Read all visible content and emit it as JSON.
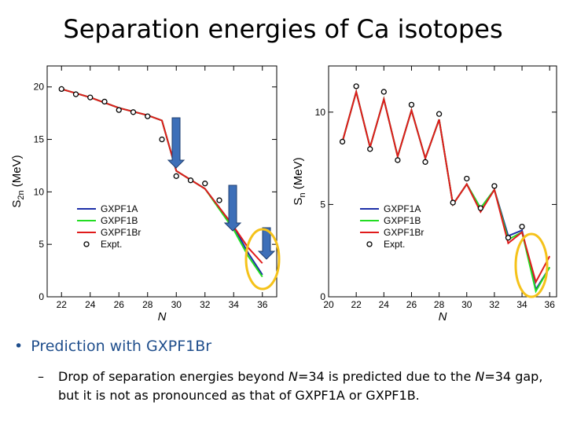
{
  "slide": {
    "title": "Separation energies of Ca isotopes",
    "bullet": "Prediction with GXPF1Br",
    "sub_text_1": "Drop of separation energies beyond ",
    "sub_n1": "N",
    "sub_text_2": "=34 is predicted due to the ",
    "sub_n2": "N",
    "sub_text_3": "=34 gap, but it is not as pronounced as that of GXPF1A or GXPF1B."
  },
  "colors": {
    "GXPF1A": "#1c2fa8",
    "GXPF1B": "#22dd22",
    "GXPF1Br": "#e01b1b",
    "arrow": "#3d6fb8",
    "circle": "#f5c21a"
  },
  "chart_data": [
    {
      "type": "line",
      "ylabel_main": "S",
      "ylabel_sub": "2n",
      "ylabel_unit": " (MeV)",
      "xlabel": "N",
      "xlim": [
        21,
        37
      ],
      "ylim": [
        0,
        22
      ],
      "xticks": [
        22,
        24,
        26,
        28,
        30,
        32,
        34,
        36
      ],
      "yticks": [
        0,
        5,
        10,
        15,
        20
      ],
      "legend": "lower-left",
      "legend_labels": [
        "GXPF1A",
        "GXPF1B",
        "GXPF1Br",
        "Expt."
      ],
      "series": [
        {
          "name": "GXPF1A",
          "x": [
            22,
            24,
            26,
            28,
            29,
            30,
            32,
            34,
            35,
            36
          ],
          "y": [
            19.8,
            19.0,
            18.0,
            17.3,
            16.8,
            12.0,
            10.3,
            6.7,
            4.2,
            2.1
          ]
        },
        {
          "name": "GXPF1B",
          "x": [
            22,
            24,
            26,
            28,
            29,
            30,
            32,
            34,
            35,
            36
          ],
          "y": [
            19.8,
            19.0,
            18.0,
            17.3,
            16.8,
            12.0,
            10.3,
            6.4,
            3.9,
            1.9
          ]
        },
        {
          "name": "GXPF1Br",
          "x": [
            22,
            24,
            26,
            28,
            29,
            30,
            32,
            34,
            35,
            36
          ],
          "y": [
            19.8,
            19.0,
            18.0,
            17.3,
            16.8,
            12.0,
            10.3,
            6.7,
            4.7,
            3.2
          ]
        },
        {
          "name": "Expt.",
          "x": [
            22,
            23,
            24,
            25,
            26,
            27,
            28,
            29,
            30,
            31,
            32,
            33,
            34
          ],
          "y": [
            19.8,
            19.3,
            19.0,
            18.6,
            17.8,
            17.6,
            17.2,
            15.0,
            11.5,
            11.1,
            10.8,
            9.2,
            7.0
          ]
        }
      ]
    },
    {
      "type": "line",
      "ylabel_main": "S",
      "ylabel_sub": "n",
      "ylabel_unit": " (MeV)",
      "xlabel": "N",
      "xlim": [
        20,
        36.5
      ],
      "ylim": [
        0,
        12.5
      ],
      "xticks": [
        20,
        22,
        24,
        26,
        28,
        30,
        32,
        34,
        36
      ],
      "yticks": [
        0,
        5,
        10
      ],
      "legend": "lower-left",
      "legend_labels": [
        "GXPF1A",
        "GXPF1B",
        "GXPF1Br",
        "Expt."
      ],
      "series": [
        {
          "name": "GXPF1A",
          "x": [
            21,
            22,
            23,
            24,
            25,
            26,
            27,
            28,
            29,
            30,
            31,
            32,
            33,
            34,
            35,
            36
          ],
          "y": [
            8.4,
            11.1,
            8.1,
            10.7,
            7.6,
            10.1,
            7.5,
            9.6,
            5.0,
            6.1,
            4.8,
            5.8,
            3.3,
            3.6,
            0.4,
            1.6
          ]
        },
        {
          "name": "GXPF1B",
          "x": [
            21,
            22,
            23,
            24,
            25,
            26,
            27,
            28,
            29,
            30,
            31,
            32,
            33,
            34,
            35,
            36
          ],
          "y": [
            8.4,
            11.1,
            8.1,
            10.7,
            7.6,
            10.1,
            7.5,
            9.6,
            5.0,
            6.1,
            4.8,
            5.8,
            3.1,
            3.5,
            0.3,
            1.6
          ]
        },
        {
          "name": "GXPF1Br",
          "x": [
            21,
            22,
            23,
            24,
            25,
            26,
            27,
            28,
            29,
            30,
            31,
            32,
            33,
            34,
            35,
            36
          ],
          "y": [
            8.4,
            11.1,
            8.1,
            10.7,
            7.6,
            10.1,
            7.5,
            9.6,
            5.0,
            6.1,
            4.6,
            5.8,
            2.9,
            3.5,
            0.8,
            2.2
          ]
        },
        {
          "name": "Expt.",
          "x": [
            21,
            22,
            23,
            24,
            25,
            26,
            27,
            28,
            29,
            30,
            31,
            32,
            33,
            34
          ],
          "y": [
            8.4,
            11.4,
            8.0,
            11.1,
            7.4,
            10.4,
            7.3,
            9.9,
            5.1,
            6.4,
            4.8,
            6.0,
            3.2,
            3.8
          ]
        }
      ]
    }
  ]
}
